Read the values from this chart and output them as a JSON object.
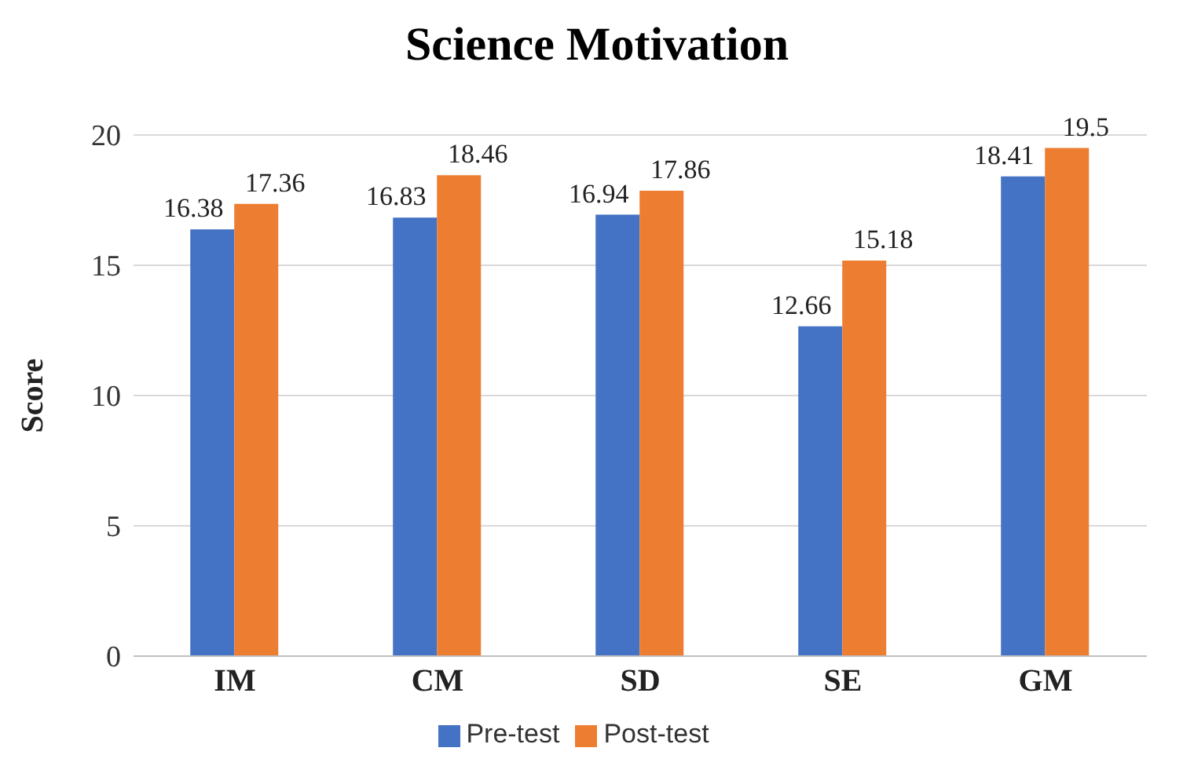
{
  "chart_data": {
    "type": "bar",
    "title": "Science Motivation",
    "ylabel": "Score",
    "categories": [
      "IM",
      "CM",
      "SD",
      "SE",
      "GM"
    ],
    "series": [
      {
        "name": "Pre-test",
        "color": "#4472c4",
        "values": [
          16.38,
          16.83,
          16.94,
          12.66,
          18.41
        ]
      },
      {
        "name": "Post-test",
        "color": "#ed7d31",
        "values": [
          17.36,
          18.46,
          17.86,
          15.18,
          19.5
        ]
      }
    ],
    "ylim": [
      0,
      20
    ],
    "yticks": [
      0,
      5,
      10,
      15,
      20
    ],
    "grid": "y",
    "legend": "bottom",
    "data_labels": true
  }
}
